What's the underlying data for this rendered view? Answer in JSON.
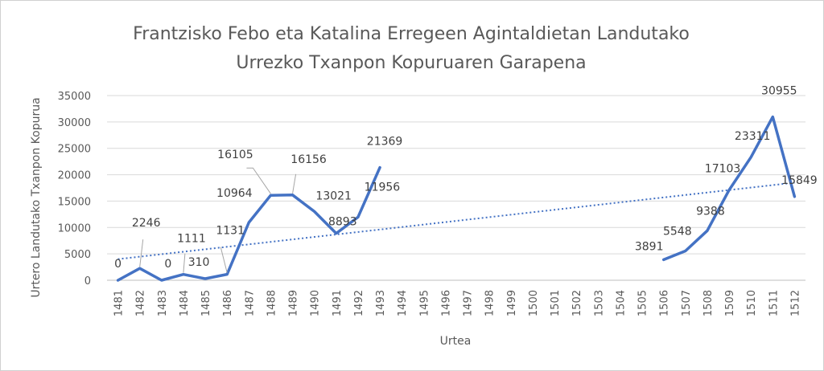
{
  "chart_data": {
    "type": "line",
    "title_lines": [
      "Frantzisko Febo eta Katalina Erregeen Agintaldietan Landutako",
      "Urrezko Txanpon Kopuruaren Garapena"
    ],
    "xlabel": "Urtea",
    "ylabel": "Urtero Landutako Txanpon Kopurua",
    "ylim": [
      0,
      35000
    ],
    "yticks": [
      "0",
      "5000",
      "10000",
      "15000",
      "20000",
      "25000",
      "30000",
      "35000"
    ],
    "categories": [
      "1481",
      "1482",
      "1483",
      "1484",
      "1485",
      "1486",
      "1487",
      "1488",
      "1489",
      "1490",
      "1491",
      "1492",
      "1493",
      "1494",
      "1495",
      "1496",
      "1497",
      "1498",
      "1499",
      "1500",
      "1501",
      "1502",
      "1503",
      "1504",
      "1505",
      "1506",
      "1507",
      "1508",
      "1509",
      "1510",
      "1511",
      "1512"
    ],
    "values": [
      0,
      2246,
      0,
      1111,
      310,
      1131,
      10964,
      16105,
      16156,
      13021,
      8893,
      11956,
      21369,
      null,
      null,
      null,
      null,
      null,
      null,
      null,
      null,
      null,
      null,
      null,
      null,
      3891,
      5548,
      9388,
      17103,
      23311,
      30955,
      15849
    ],
    "data_labels": [
      "0",
      "2246",
      "0",
      "1111",
      "310",
      "1131",
      "10964",
      "16105",
      "16156",
      "13021",
      "8893",
      "11956",
      "21369",
      "",
      "",
      "",
      "",
      "",
      "",
      "",
      "",
      "",
      "",
      "",
      "",
      "3891",
      "5548",
      "9388",
      "17103",
      "23311",
      "30955",
      "15849"
    ],
    "series_color": "#4472c4",
    "trendline": {
      "style": "dotted",
      "start": 4000,
      "end": 18500
    },
    "grid": true,
    "legend": "none"
  }
}
